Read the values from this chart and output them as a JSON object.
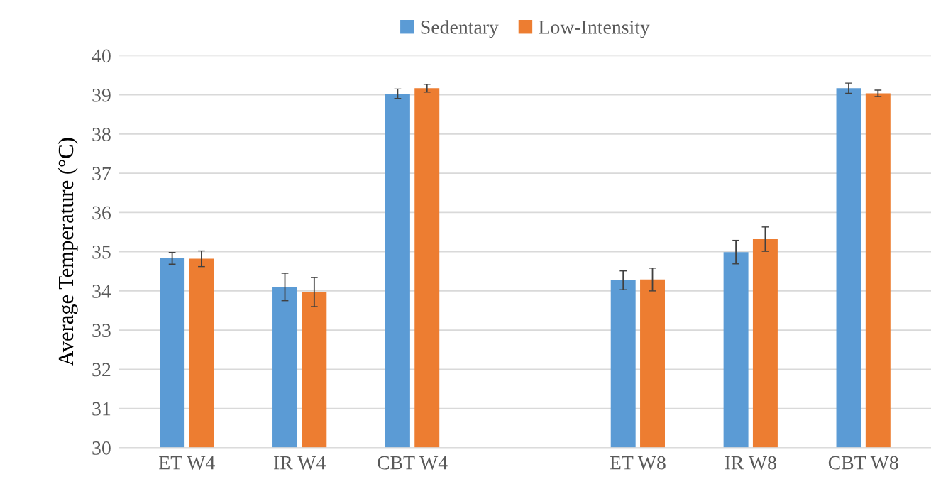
{
  "chart_data": {
    "type": "bar",
    "ylabel": "Average Temperature (°C)",
    "categories": [
      "ET W4",
      "IR W4",
      "CBT W4",
      null,
      "ET W8",
      "IR W8",
      "CBT W8"
    ],
    "series": [
      {
        "name": "Sedentary",
        "color": "#5b9bd5",
        "values": [
          34.83,
          34.1,
          39.03,
          null,
          34.27,
          34.99,
          39.17
        ],
        "errors": [
          0.15,
          0.35,
          0.12,
          null,
          0.24,
          0.3,
          0.13
        ]
      },
      {
        "name": "Low-Intensity",
        "color": "#ed7d31",
        "values": [
          34.82,
          33.97,
          39.17,
          null,
          34.29,
          35.32,
          39.04
        ],
        "errors": [
          0.2,
          0.37,
          0.1,
          null,
          0.29,
          0.31,
          0.08
        ]
      }
    ],
    "ylim": [
      30,
      40
    ],
    "yticks": [
      30,
      31,
      32,
      33,
      34,
      35,
      36,
      37,
      38,
      39,
      40
    ],
    "grid": "y",
    "legend": "top"
  }
}
